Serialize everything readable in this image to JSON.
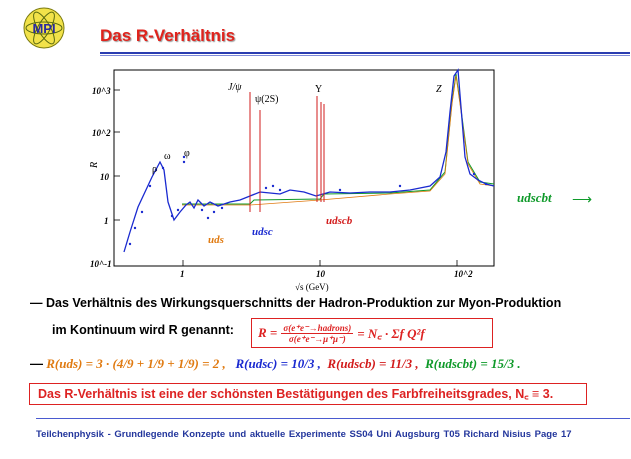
{
  "header": {
    "logo_text": "MPI",
    "title": "Das R-Verhältnis"
  },
  "plot": {
    "ylabel": "R",
    "xlabel": "√s (GeV)",
    "ytick_labels": [
      "10^3",
      "10^2",
      "10",
      "1",
      "10^-1"
    ],
    "xtick_labels": [
      "1",
      "10",
      "10^2"
    ],
    "resonances": [
      "ρ",
      "ω",
      "φ",
      "J/ψ",
      "ψ(2S)",
      "Υ",
      "Z"
    ],
    "region_labels": {
      "uds": "uds",
      "udsc": "udsc",
      "udscb": "udscb"
    },
    "colors": {
      "uds": "#e07a10",
      "udsc": "#1a2ad0",
      "udscb": "#d21b1b",
      "udscbt": "#0f9a2a",
      "data": "#1a2ad0",
      "resonance_lines": "#d21b1b"
    }
  },
  "side": {
    "label": "udscbt",
    "arrow": "⟶"
  },
  "text": {
    "dash": "—",
    "line1": "Das Verhältnis des Wirkungsquerschnitts der Hadron-Produktion zur Myon-Produktion",
    "line2": "im Kontinuum wird R genannt:",
    "formula_lhs": "R =",
    "formula_num": "σ(e⁺e⁻→hadrons)",
    "formula_den": "σ(e⁺e⁻→μ⁺μ⁻)",
    "formula_rhs": "= N꜀ · Σf Q²f",
    "r_uds": "R(uds) = 3 · (4/9 + 1/9 + 1/9) = 2 ,",
    "r_udsc": "R(udsc) = 10/3 ,",
    "r_udscb": "R(udscb) = 11/3 ,",
    "r_udscbt": "R(udscbt) = 15/3 .",
    "conclusion": "Das R-Verhältnis ist eine der schönsten Bestätigungen des Farbfreiheitsgrades, N꜀ ≡ 3."
  },
  "footer": {
    "text": "Teilchenphysik - Grundlegende Konzepte und aktuelle Experimente    SS04 Uni Augsburg    T05    Richard Nisius    Page 17"
  }
}
